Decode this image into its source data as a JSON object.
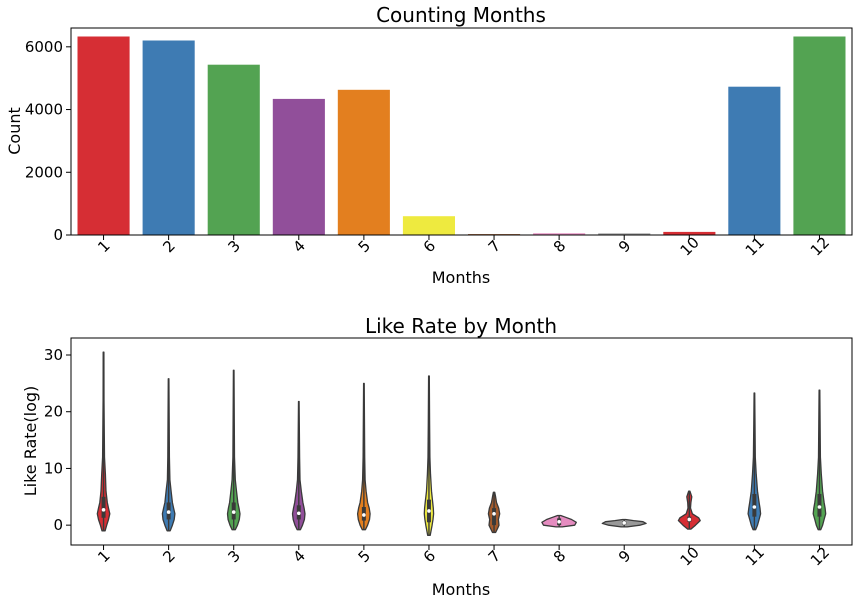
{
  "chart_data": [
    {
      "type": "bar",
      "title": "Counting Months",
      "xlabel": "Months",
      "ylabel": "Count",
      "categories": [
        "1",
        "2",
        "3",
        "4",
        "5",
        "6",
        "7",
        "8",
        "9",
        "10",
        "11",
        "12"
      ],
      "values": [
        6330,
        6200,
        5430,
        4340,
        4630,
        600,
        30,
        55,
        50,
        100,
        4730,
        6330
      ],
      "colors": [
        "#d62e34",
        "#3e7bb3",
        "#53a352",
        "#914f9a",
        "#e37f1f",
        "#eeea3f",
        "#a55b2c",
        "#e58cc0",
        "#999999",
        "#d62e34",
        "#3e7bb3",
        "#53a352"
      ],
      "ylim": [
        0,
        6600
      ],
      "yticks": [
        0,
        2000,
        4000,
        6000
      ],
      "grid": false,
      "legend": "none"
    },
    {
      "type": "violin",
      "title": "Like Rate by Month",
      "xlabel": "Months",
      "ylabel": "Like Rate(log)",
      "categories": [
        "1",
        "2",
        "3",
        "4",
        "5",
        "6",
        "7",
        "8",
        "9",
        "10",
        "11",
        "12"
      ],
      "colors": [
        "#d62e34",
        "#3e7bb3",
        "#53a352",
        "#914f9a",
        "#e37f1f",
        "#eeea3f",
        "#a55b2c",
        "#e58cc0",
        "#999999",
        "#d62e34",
        "#3e7bb3",
        "#53a352"
      ],
      "ylim": [
        -3.5,
        33
      ],
      "yticks": [
        0,
        10,
        20,
        30
      ],
      "grid": false,
      "legend": "none",
      "violins": [
        {
          "min": -1.0,
          "max": 30.5,
          "q1": 1.3,
          "median": 2.7,
          "q3": 5.0,
          "profile": [
            [
              -1.0,
              0.05
            ],
            [
              0,
              0.1
            ],
            [
              1,
              0.16
            ],
            [
              2,
              0.2
            ],
            [
              3,
              0.16
            ],
            [
              4,
              0.12
            ],
            [
              6,
              0.08
            ],
            [
              9,
              0.06
            ],
            [
              12,
              0.03
            ],
            [
              16,
              0.025
            ],
            [
              22,
              0.015
            ],
            [
              30.5,
              0.01
            ]
          ]
        },
        {
          "min": -1.0,
          "max": 25.8,
          "q1": 1.0,
          "median": 2.3,
          "q3": 4.0,
          "profile": [
            [
              -1.0,
              0.05
            ],
            [
              0,
              0.12
            ],
            [
              1,
              0.18
            ],
            [
              2,
              0.2
            ],
            [
              3,
              0.16
            ],
            [
              4,
              0.12
            ],
            [
              6,
              0.08
            ],
            [
              8,
              0.04
            ],
            [
              12,
              0.025
            ],
            [
              18,
              0.02
            ],
            [
              25.8,
              0.01
            ]
          ]
        },
        {
          "min": -0.8,
          "max": 27.3,
          "q1": 1.0,
          "median": 2.3,
          "q3": 4.0,
          "profile": [
            [
              -0.8,
              0.05
            ],
            [
              0,
              0.12
            ],
            [
              1,
              0.18
            ],
            [
              2,
              0.2
            ],
            [
              3,
              0.17
            ],
            [
              4,
              0.13
            ],
            [
              6,
              0.09
            ],
            [
              8,
              0.05
            ],
            [
              12,
              0.025
            ],
            [
              18,
              0.02
            ],
            [
              27.3,
              0.01
            ]
          ]
        },
        {
          "min": -0.8,
          "max": 21.8,
          "q1": 1.0,
          "median": 2.1,
          "q3": 3.5,
          "profile": [
            [
              -0.8,
              0.05
            ],
            [
              0,
              0.12
            ],
            [
              1,
              0.18
            ],
            [
              2,
              0.2
            ],
            [
              3,
              0.17
            ],
            [
              4,
              0.13
            ],
            [
              6,
              0.08
            ],
            [
              8,
              0.04
            ],
            [
              12,
              0.025
            ],
            [
              21.8,
              0.01
            ]
          ]
        },
        {
          "min": -0.8,
          "max": 25.0,
          "q1": 0.8,
          "median": 1.8,
          "q3": 3.2,
          "profile": [
            [
              -0.8,
              0.05
            ],
            [
              0,
              0.12
            ],
            [
              1,
              0.18
            ],
            [
              2,
              0.2
            ],
            [
              3,
              0.17
            ],
            [
              4,
              0.12
            ],
            [
              6,
              0.07
            ],
            [
              8,
              0.04
            ],
            [
              12,
              0.025
            ],
            [
              25.0,
              0.01
            ]
          ]
        },
        {
          "min": -1.8,
          "max": 26.3,
          "q1": 0.5,
          "median": 2.5,
          "q3": 4.5,
          "profile": [
            [
              -1.8,
              0.04
            ],
            [
              0,
              0.1
            ],
            [
              1,
              0.13
            ],
            [
              2,
              0.15
            ],
            [
              3,
              0.14
            ],
            [
              4,
              0.12
            ],
            [
              6,
              0.08
            ],
            [
              9,
              0.05
            ],
            [
              12,
              0.03
            ],
            [
              18,
              0.02
            ],
            [
              26.3,
              0.01
            ]
          ]
        },
        {
          "min": -1.3,
          "max": 5.8,
          "q1": 0.0,
          "median": 2.0,
          "q3": 3.0,
          "profile": [
            [
              -1.3,
              0.05
            ],
            [
              -0.5,
              0.12
            ],
            [
              0,
              0.16
            ],
            [
              1,
              0.14
            ],
            [
              2,
              0.18
            ],
            [
              3,
              0.15
            ],
            [
              4,
              0.08
            ],
            [
              5,
              0.05
            ],
            [
              5.8,
              0.02
            ]
          ]
        },
        {
          "min": -0.3,
          "max": 1.7,
          "q1": 0.0,
          "median": 0.6,
          "q3": 1.2,
          "profile": [
            [
              -0.3,
              0.1
            ],
            [
              0,
              0.5
            ],
            [
              0.5,
              0.55
            ],
            [
              1,
              0.4
            ],
            [
              1.4,
              0.2
            ],
            [
              1.7,
              0.05
            ]
          ]
        },
        {
          "min": -0.3,
          "max": 1.0,
          "q1": 0.1,
          "median": 0.4,
          "q3": 0.7,
          "profile": [
            [
              -0.3,
              0.1
            ],
            [
              0,
              0.5
            ],
            [
              0.3,
              0.7
            ],
            [
              0.6,
              0.6
            ],
            [
              0.8,
              0.3
            ],
            [
              1.0,
              0.05
            ]
          ]
        },
        {
          "min": -0.7,
          "max": 6.0,
          "q1": 0.6,
          "median": 1.0,
          "q3": 1.5,
          "profile": [
            [
              -0.7,
              0.05
            ],
            [
              0,
              0.2
            ],
            [
              0.8,
              0.35
            ],
            [
              1.3,
              0.3
            ],
            [
              2,
              0.1
            ],
            [
              3,
              0.04
            ],
            [
              4,
              0.05
            ],
            [
              5,
              0.08
            ],
            [
              6.0,
              0.02
            ]
          ]
        },
        {
          "min": -0.8,
          "max": 23.3,
          "q1": 1.5,
          "median": 3.2,
          "q3": 5.5,
          "profile": [
            [
              -0.8,
              0.04
            ],
            [
              0,
              0.1
            ],
            [
              1,
              0.15
            ],
            [
              2,
              0.2
            ],
            [
              3,
              0.18
            ],
            [
              4,
              0.15
            ],
            [
              6,
              0.1
            ],
            [
              9,
              0.06
            ],
            [
              12,
              0.03
            ],
            [
              18,
              0.02
            ],
            [
              23.3,
              0.01
            ]
          ]
        },
        {
          "min": -0.8,
          "max": 23.8,
          "q1": 1.5,
          "median": 3.2,
          "q3": 5.5,
          "profile": [
            [
              -0.8,
              0.04
            ],
            [
              0,
              0.1
            ],
            [
              1,
              0.15
            ],
            [
              2,
              0.2
            ],
            [
              3,
              0.18
            ],
            [
              4,
              0.15
            ],
            [
              6,
              0.1
            ],
            [
              9,
              0.06
            ],
            [
              12,
              0.03
            ],
            [
              18,
              0.02
            ],
            [
              23.8,
              0.01
            ]
          ]
        }
      ]
    }
  ]
}
